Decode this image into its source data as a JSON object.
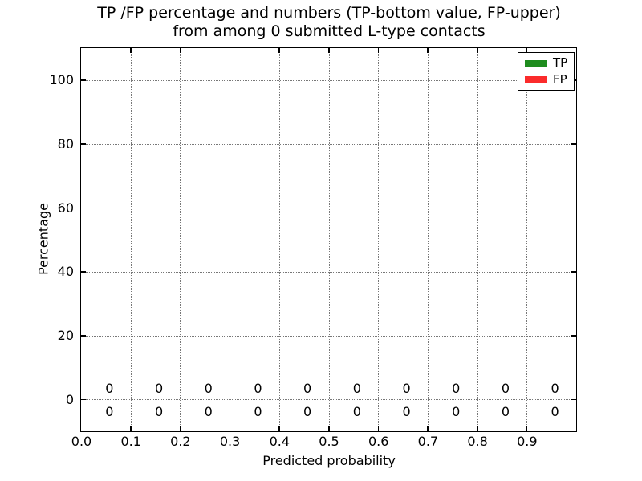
{
  "title": {
    "line1": "TP /FP percentage and numbers (TP-bottom value, FP-upper)",
    "line2": "from among 0 submitted L-type contacts"
  },
  "axes": {
    "xlabel": "Predicted probability",
    "ylabel": "Percentage"
  },
  "legend": {
    "position": "upper right",
    "items": [
      {
        "label": "TP",
        "color": "#1e8c1e"
      },
      {
        "label": "FP",
        "color": "#fb2b2b"
      }
    ]
  },
  "chart_data": {
    "type": "bar",
    "stacked": true,
    "title": "TP /FP percentage and numbers (TP-bottom value, FP-upper) from among 0 submitted L-type contacts",
    "xlabel": "Predicted probability",
    "ylabel": "Percentage",
    "xlim": [
      0.0,
      1.0
    ],
    "ylim": [
      -10,
      110
    ],
    "xticks": [
      0.0,
      0.1,
      0.2,
      0.3,
      0.4,
      0.5,
      0.6,
      0.7,
      0.8,
      0.9
    ],
    "xtick_labels": [
      "0.0",
      "0.1",
      "0.2",
      "0.3",
      "0.4",
      "0.5",
      "0.6",
      "0.7",
      "0.8",
      "0.9"
    ],
    "yticks": [
      0,
      20,
      40,
      60,
      80,
      100
    ],
    "ytick_labels": [
      "0",
      "20",
      "40",
      "60",
      "80",
      "100"
    ],
    "grid": true,
    "grid_linestyle": "dotted",
    "legend_position": "upper right",
    "bin_centers": [
      0.05,
      0.15,
      0.25,
      0.35,
      0.45,
      0.55,
      0.65,
      0.75,
      0.85,
      0.95
    ],
    "series": [
      {
        "name": "TP",
        "color": "#1e8c1e",
        "label_row": "below-axis",
        "percentages": [
          0,
          0,
          0,
          0,
          0,
          0,
          0,
          0,
          0,
          0
        ],
        "counts": [
          0,
          0,
          0,
          0,
          0,
          0,
          0,
          0,
          0,
          0
        ]
      },
      {
        "name": "FP",
        "color": "#fb2b2b",
        "label_row": "above-axis",
        "percentages": [
          0,
          0,
          0,
          0,
          0,
          0,
          0,
          0,
          0,
          0
        ],
        "counts": [
          0,
          0,
          0,
          0,
          0,
          0,
          0,
          0,
          0,
          0
        ]
      }
    ]
  }
}
